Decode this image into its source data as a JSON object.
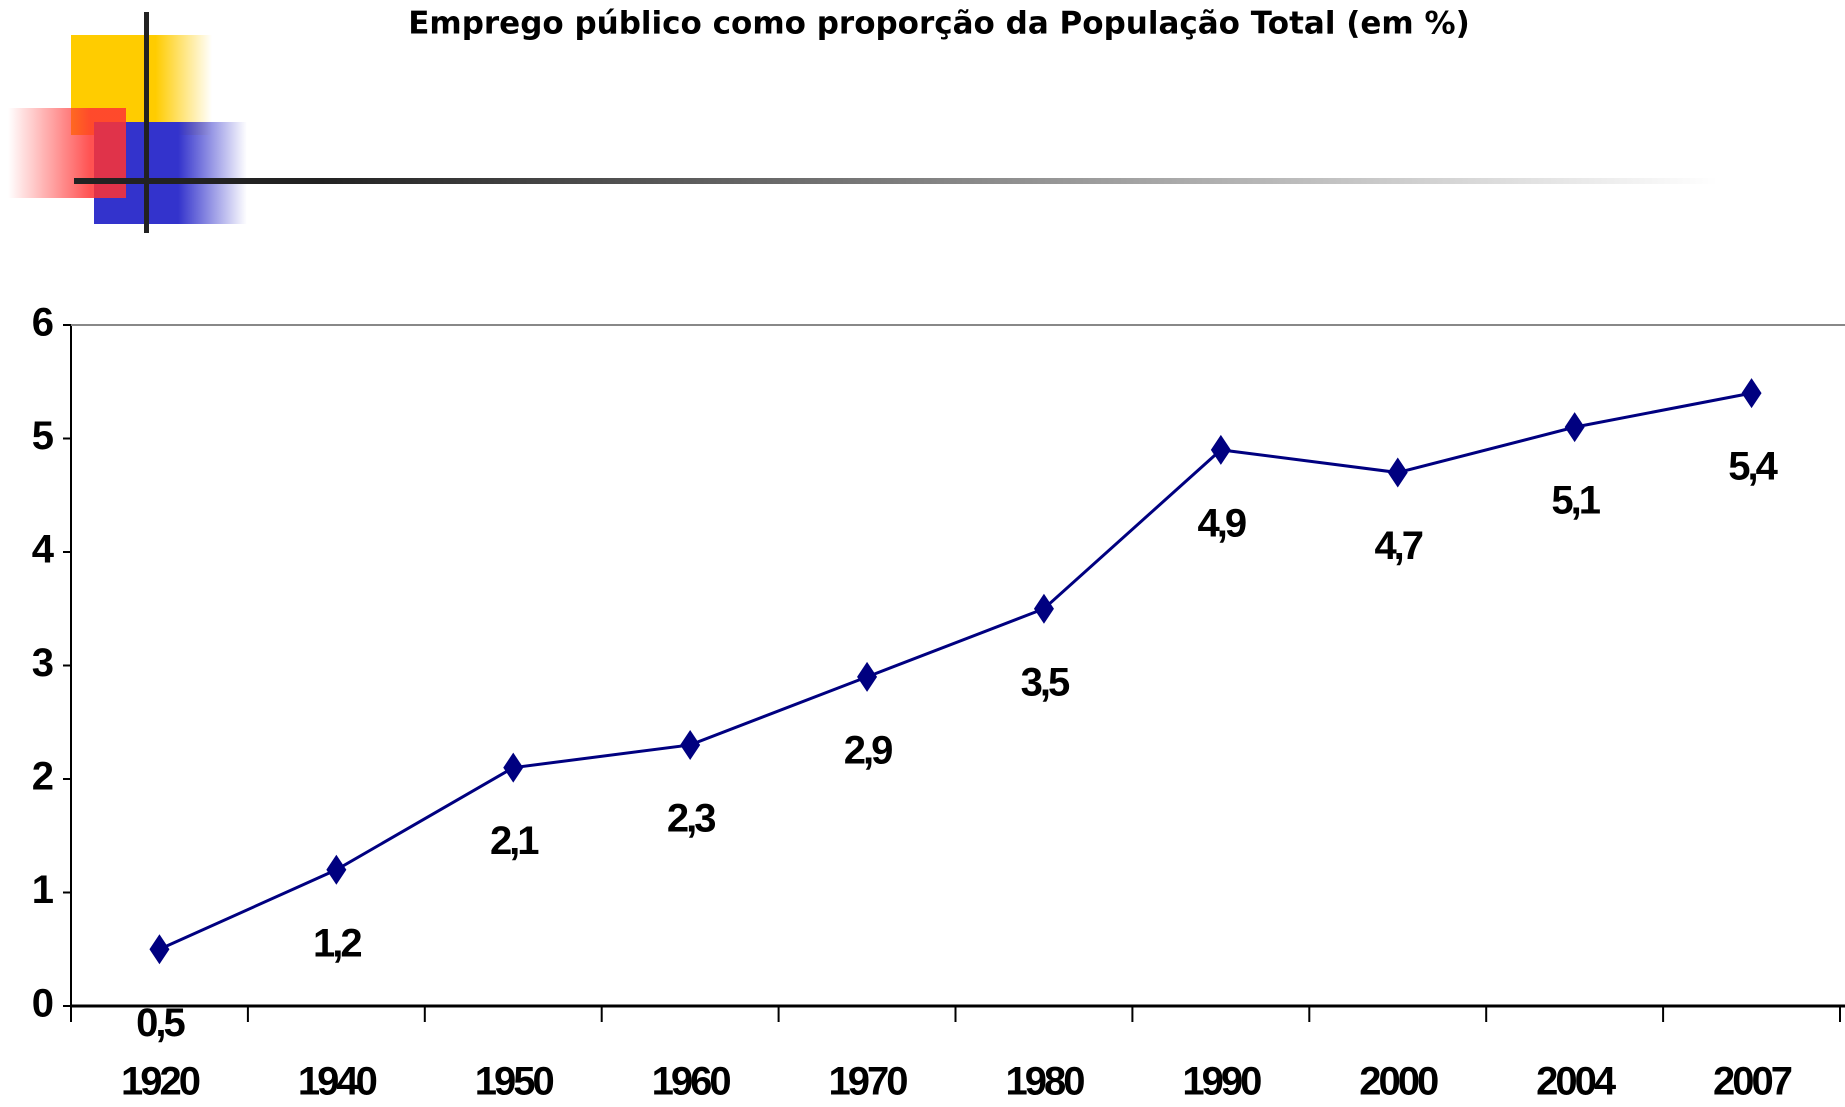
{
  "chart_data": {
    "type": "line",
    "title": "Emprego público como proporção da População Total (em %)",
    "categories": [
      "1920",
      "1940",
      "1950",
      "1960",
      "1970",
      "1980",
      "1990",
      "2000",
      "2004",
      "2007"
    ],
    "values": [
      0.5,
      1.2,
      2.1,
      2.3,
      2.9,
      3.5,
      4.9,
      4.7,
      5.1,
      5.4
    ],
    "value_labels": [
      "0,5",
      "1,2",
      "2,1",
      "2,3",
      "2,9",
      "3,5",
      "4,9",
      "4,7",
      "5,1",
      "5,4"
    ],
    "color": "#000080",
    "ylim": [
      0,
      6
    ],
    "yticks": [
      0,
      1,
      2,
      3,
      4,
      5,
      6
    ],
    "grid": false
  }
}
